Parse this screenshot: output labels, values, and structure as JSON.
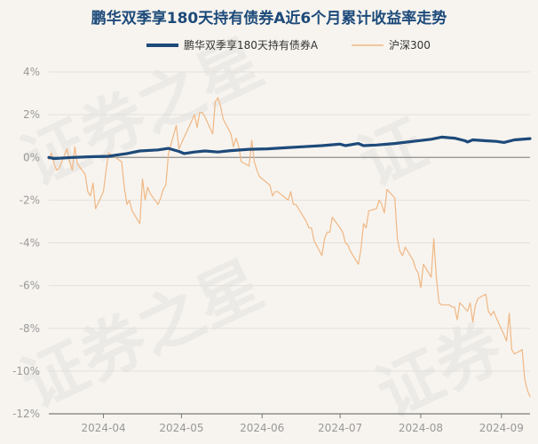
{
  "chart_data": {
    "type": "line",
    "title": "鹏华双季享180天持有债券A近6个月累计收益率走势",
    "xlabel": "",
    "ylabel": "",
    "x_range": [
      "2024-03-11",
      "2024-09-12"
    ],
    "x_ticks": [
      "2024-04",
      "2024-05",
      "2024-06",
      "2024-07",
      "2024-08",
      "2024-09"
    ],
    "y_ticks": [
      "4%",
      "2%",
      "0%",
      "-2%",
      "-4%",
      "-6%",
      "-8%",
      "-10%",
      "-12%"
    ],
    "ylim": [
      -12,
      4
    ],
    "legend_position": "top",
    "series": [
      {
        "name": "鹏华双季享180天持有债券A",
        "color": "#1d4a7a",
        "points": [
          [
            "2024-03-11",
            0.0
          ],
          [
            "2024-03-13",
            -0.05
          ],
          [
            "2024-03-20",
            0.0
          ],
          [
            "2024-03-27",
            0.03
          ],
          [
            "2024-04-03",
            0.05
          ],
          [
            "2024-04-10",
            0.18
          ],
          [
            "2024-04-15",
            0.3
          ],
          [
            "2024-04-22",
            0.35
          ],
          [
            "2024-04-26",
            0.42
          ],
          [
            "2024-04-30",
            0.28
          ],
          [
            "2024-05-02",
            0.18
          ],
          [
            "2024-05-06",
            0.25
          ],
          [
            "2024-05-10",
            0.3
          ],
          [
            "2024-05-15",
            0.25
          ],
          [
            "2024-05-20",
            0.32
          ],
          [
            "2024-05-27",
            0.38
          ],
          [
            "2024-06-03",
            0.4
          ],
          [
            "2024-06-10",
            0.45
          ],
          [
            "2024-06-17",
            0.5
          ],
          [
            "2024-06-24",
            0.55
          ],
          [
            "2024-07-01",
            0.62
          ],
          [
            "2024-07-03",
            0.55
          ],
          [
            "2024-07-08",
            0.65
          ],
          [
            "2024-07-10",
            0.55
          ],
          [
            "2024-07-15",
            0.58
          ],
          [
            "2024-07-22",
            0.65
          ],
          [
            "2024-07-29",
            0.75
          ],
          [
            "2024-08-05",
            0.85
          ],
          [
            "2024-08-09",
            0.95
          ],
          [
            "2024-08-14",
            0.9
          ],
          [
            "2024-08-18",
            0.78
          ],
          [
            "2024-08-19",
            0.72
          ],
          [
            "2024-08-21",
            0.82
          ],
          [
            "2024-08-26",
            0.78
          ],
          [
            "2024-08-30",
            0.75
          ],
          [
            "2024-09-02",
            0.7
          ],
          [
            "2024-09-06",
            0.82
          ],
          [
            "2024-09-12",
            0.88
          ]
        ]
      },
      {
        "name": "沪深300",
        "color": "#f0b784",
        "points": [
          [
            "2024-03-11",
            -0.1
          ],
          [
            "2024-03-12",
            0.2
          ],
          [
            "2024-03-13",
            -0.3
          ],
          [
            "2024-03-14",
            -0.6
          ],
          [
            "2024-03-15",
            -0.5
          ],
          [
            "2024-03-18",
            0.4
          ],
          [
            "2024-03-19",
            -0.2
          ],
          [
            "2024-03-20",
            -0.6
          ],
          [
            "2024-03-21",
            0.5
          ],
          [
            "2024-03-22",
            -0.3
          ],
          [
            "2024-03-25",
            -0.8
          ],
          [
            "2024-03-26",
            -1.6
          ],
          [
            "2024-03-27",
            -1.8
          ],
          [
            "2024-03-28",
            -1.2
          ],
          [
            "2024-03-29",
            -2.4
          ],
          [
            "2024-04-01",
            -1.6
          ],
          [
            "2024-04-02",
            -0.6
          ],
          [
            "2024-04-03",
            0.2
          ],
          [
            "2024-04-08",
            -0.2
          ],
          [
            "2024-04-09",
            -1.4
          ],
          [
            "2024-04-10",
            -2.2
          ],
          [
            "2024-04-11",
            -2.0
          ],
          [
            "2024-04-12",
            -2.5
          ],
          [
            "2024-04-15",
            -3.1
          ],
          [
            "2024-04-16",
            -1.0
          ],
          [
            "2024-04-17",
            -2.0
          ],
          [
            "2024-04-18",
            -1.4
          ],
          [
            "2024-04-19",
            -1.7
          ],
          [
            "2024-04-22",
            -2.2
          ],
          [
            "2024-04-23",
            -1.9
          ],
          [
            "2024-04-24",
            -1.5
          ],
          [
            "2024-04-25",
            -1.3
          ],
          [
            "2024-04-26",
            0.2
          ],
          [
            "2024-04-29",
            1.5
          ],
          [
            "2024-04-30",
            0.4
          ],
          [
            "2024-05-06",
            2.0
          ],
          [
            "2024-05-07",
            1.4
          ],
          [
            "2024-05-08",
            2.1
          ],
          [
            "2024-05-09",
            2.1
          ],
          [
            "2024-05-10",
            1.9
          ],
          [
            "2024-05-13",
            1.1
          ],
          [
            "2024-05-14",
            2.6
          ],
          [
            "2024-05-15",
            2.8
          ],
          [
            "2024-05-16",
            2.4
          ],
          [
            "2024-05-17",
            1.8
          ],
          [
            "2024-05-20",
            1.1
          ],
          [
            "2024-05-21",
            0.5
          ],
          [
            "2024-05-22",
            0.9
          ],
          [
            "2024-05-23",
            0.5
          ],
          [
            "2024-05-24",
            -0.2
          ],
          [
            "2024-05-27",
            -0.4
          ],
          [
            "2024-05-28",
            0.8
          ],
          [
            "2024-05-29",
            -0.2
          ],
          [
            "2024-05-30",
            -0.6
          ],
          [
            "2024-05-31",
            -0.9
          ],
          [
            "2024-06-03",
            -1.2
          ],
          [
            "2024-06-04",
            -1.3
          ],
          [
            "2024-06-05",
            -1.8
          ],
          [
            "2024-06-06",
            -1.6
          ],
          [
            "2024-06-07",
            -1.6
          ],
          [
            "2024-06-11",
            -2.0
          ],
          [
            "2024-06-12",
            -1.6
          ],
          [
            "2024-06-13",
            -2.2
          ],
          [
            "2024-06-14",
            -2.2
          ],
          [
            "2024-06-17",
            -2.8
          ],
          [
            "2024-06-18",
            -3.0
          ],
          [
            "2024-06-19",
            -3.3
          ],
          [
            "2024-06-20",
            -3.3
          ],
          [
            "2024-06-21",
            -3.9
          ],
          [
            "2024-06-24",
            -4.6
          ],
          [
            "2024-06-25",
            -3.8
          ],
          [
            "2024-06-26",
            -3.5
          ],
          [
            "2024-06-27",
            -3.5
          ],
          [
            "2024-06-28",
            -2.8
          ],
          [
            "2024-07-01",
            -3.3
          ],
          [
            "2024-07-02",
            -3.5
          ],
          [
            "2024-07-03",
            -4.0
          ],
          [
            "2024-07-04",
            -4.1
          ],
          [
            "2024-07-05",
            -4.4
          ],
          [
            "2024-07-08",
            -5.0
          ],
          [
            "2024-07-09",
            -4.3
          ],
          [
            "2024-07-10",
            -3.1
          ],
          [
            "2024-07-11",
            -3.3
          ],
          [
            "2024-07-12",
            -2.5
          ],
          [
            "2024-07-15",
            -2.4
          ],
          [
            "2024-07-16",
            -2.0
          ],
          [
            "2024-07-17",
            -2.2
          ],
          [
            "2024-07-18",
            -2.6
          ],
          [
            "2024-07-19",
            -1.5
          ],
          [
            "2024-07-22",
            -1.9
          ],
          [
            "2024-07-23",
            -3.8
          ],
          [
            "2024-07-24",
            -4.4
          ],
          [
            "2024-07-25",
            -4.6
          ],
          [
            "2024-07-26",
            -4.2
          ],
          [
            "2024-07-29",
            -4.8
          ],
          [
            "2024-07-30",
            -5.2
          ],
          [
            "2024-07-31",
            -5.4
          ],
          [
            "2024-08-01",
            -6.1
          ],
          [
            "2024-08-02",
            -5.0
          ],
          [
            "2024-08-05",
            -5.6
          ],
          [
            "2024-08-06",
            -3.8
          ],
          [
            "2024-08-07",
            -5.6
          ],
          [
            "2024-08-08",
            -6.8
          ],
          [
            "2024-08-09",
            -6.9
          ],
          [
            "2024-08-12",
            -6.9
          ],
          [
            "2024-08-13",
            -7.0
          ],
          [
            "2024-08-14",
            -7.0
          ],
          [
            "2024-08-15",
            -7.6
          ],
          [
            "2024-08-16",
            -6.8
          ],
          [
            "2024-08-19",
            -7.2
          ],
          [
            "2024-08-20",
            -6.8
          ],
          [
            "2024-08-21",
            -7.7
          ],
          [
            "2024-08-22",
            -6.9
          ],
          [
            "2024-08-23",
            -6.6
          ],
          [
            "2024-08-26",
            -6.4
          ],
          [
            "2024-08-27",
            -7.2
          ],
          [
            "2024-08-28",
            -7.4
          ],
          [
            "2024-08-29",
            -7.2
          ],
          [
            "2024-08-30",
            -7.5
          ],
          [
            "2024-09-02",
            -8.3
          ],
          [
            "2024-09-03",
            -8.6
          ],
          [
            "2024-09-04",
            -7.3
          ],
          [
            "2024-09-05",
            -9.0
          ],
          [
            "2024-09-06",
            -9.2
          ],
          [
            "2024-09-09",
            -9.0
          ],
          [
            "2024-09-10",
            -10.4
          ],
          [
            "2024-09-11",
            -10.9
          ],
          [
            "2024-09-12",
            -11.2
          ]
        ]
      }
    ]
  }
}
